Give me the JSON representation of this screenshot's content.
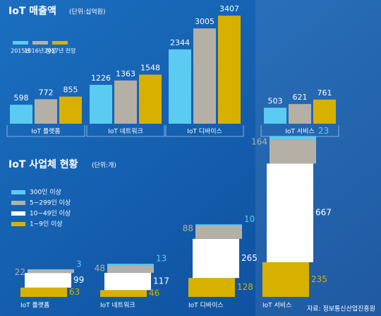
{
  "chart_data": [
    {
      "type": "bar",
      "title": "IoT 매출액",
      "unit": "(단위:십억원)",
      "categories": [
        "IoT 플랫폼",
        "IoT 네트워크",
        "IoT 디바이스",
        "IoT 서비스"
      ],
      "series": [
        {
          "name": "2015년",
          "color": "#5ccbf2",
          "values": [
            598,
            1226,
            2344,
            503
          ]
        },
        {
          "name": "2016년 잠정",
          "color": "#b5b0a6",
          "values": [
            772,
            1363,
            3005,
            621
          ]
        },
        {
          "name": "2017년 전망",
          "color": "#d8b000",
          "values": [
            855,
            1548,
            3407,
            761
          ]
        }
      ],
      "ylim": [
        0,
        3500
      ]
    },
    {
      "type": "stacked_bar",
      "title": "IoT 사업체 현황",
      "unit": "(단위:개)",
      "categories": [
        "IoT 플랫폼",
        "IoT 네트워크",
        "IoT 디바이스",
        "IoT 서비스"
      ],
      "series": [
        {
          "name": "1~9인 이상",
          "color": "#d8b000",
          "values": [
            63,
            46,
            128,
            235
          ]
        },
        {
          "name": "10~49인 이상",
          "color": "#ffffff",
          "values": [
            99,
            117,
            265,
            667
          ]
        },
        {
          "name": "5~299인 이상",
          "color": "#b5b0a6",
          "values": [
            22,
            48,
            88,
            164
          ]
        },
        {
          "name": "300인 이상",
          "color": "#5ccbf2",
          "values": [
            3,
            13,
            10,
            23
          ]
        }
      ],
      "ylim": [
        0,
        1100
      ]
    }
  ],
  "source": "자료: 정보통신산업진흥원"
}
